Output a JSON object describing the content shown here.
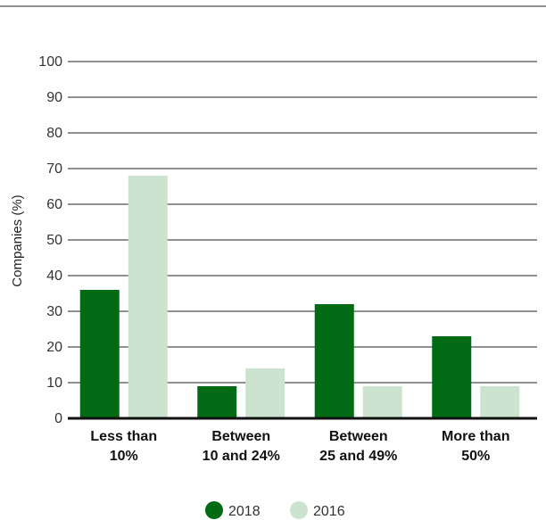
{
  "chart_data": {
    "type": "bar",
    "categories": [
      [
        "Less than",
        "10%"
      ],
      [
        "Between",
        "10 and 24%"
      ],
      [
        "Between",
        "25 and 49%"
      ],
      [
        "More than",
        "50%"
      ]
    ],
    "series": [
      {
        "name": "2018",
        "color": "#006b14",
        "values": [
          36,
          9,
          32,
          23
        ]
      },
      {
        "name": "2016",
        "color": "#cce3d0",
        "values": [
          68,
          14,
          9,
          9
        ]
      }
    ],
    "ylabel": "Companies (%)",
    "xlabel": "",
    "ylim": [
      0,
      100
    ],
    "yticks": [
      0,
      10,
      20,
      30,
      40,
      50,
      60,
      70,
      80,
      90,
      100
    ],
    "grid": true,
    "legend": "bottom-center"
  }
}
